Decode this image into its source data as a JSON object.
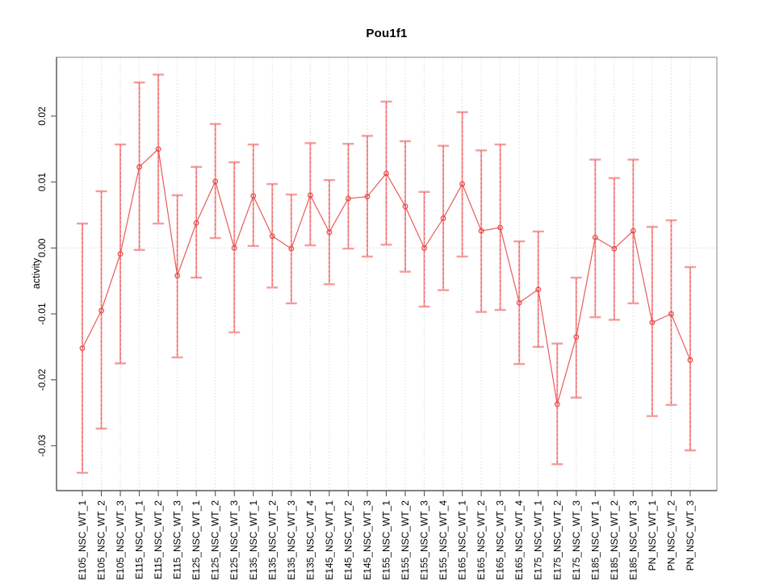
{
  "chart_data": {
    "type": "line",
    "title": "Pou1f1",
    "ylabel": "activity",
    "xlabel": "",
    "legend": "none",
    "grid": "vertical dotted gridline per category plus dotted horizontal zero line",
    "categories": [
      "E105_NSC_WT_1",
      "E105_NSC_WT_2",
      "E105_NSC_WT_3",
      "E115_NSC_WT_1",
      "E115_NSC_WT_2",
      "E115_NSC_WT_3",
      "E125_NSC_WT_1",
      "E125_NSC_WT_2",
      "E125_NSC_WT_3",
      "E135_NSC_WT_1",
      "E135_NSC_WT_2",
      "E135_NSC_WT_3",
      "E135_NSC_WT_4",
      "E145_NSC_WT_1",
      "E145_NSC_WT_2",
      "E145_NSC_WT_3",
      "E155_NSC_WT_1",
      "E155_NSC_WT_2",
      "E155_NSC_WT_3",
      "E155_NSC_WT_4",
      "E165_NSC_WT_1",
      "E165_NSC_WT_2",
      "E165_NSC_WT_3",
      "E165_NSC_WT_4",
      "E175_NSC_WT_1",
      "E175_NSC_WT_2",
      "E175_NSC_WT_3",
      "E185_NSC_WT_1",
      "E185_NSC_WT_2",
      "E185_NSC_WT_3",
      "PN_NSC_WT_1",
      "PN_NSC_WT_2",
      "PN_NSC_WT_3"
    ],
    "values": [
      -0.0152,
      -0.0095,
      -0.0009,
      0.0123,
      0.015,
      -0.0042,
      0.0038,
      0.0101,
      0.0,
      0.0079,
      0.0018,
      -0.0001,
      0.008,
      0.0024,
      0.0075,
      0.0078,
      0.0113,
      0.0063,
      0.0,
      0.0045,
      0.0097,
      0.0026,
      0.0031,
      -0.0083,
      -0.0063,
      -0.0237,
      -0.0135,
      0.0016,
      -0.0001,
      0.0026,
      -0.0113,
      -0.01,
      -0.017
    ],
    "error_upper": [
      0.0037,
      0.0086,
      0.0157,
      0.0251,
      0.0263,
      0.008,
      0.0123,
      0.0188,
      0.013,
      0.0157,
      0.0097,
      0.0081,
      0.0159,
      0.0103,
      0.0158,
      0.017,
      0.0222,
      0.0162,
      0.0085,
      0.0155,
      0.0206,
      0.0148,
      0.0157,
      0.001,
      0.0025,
      -0.0145,
      -0.0045,
      0.0134,
      0.0106,
      0.0134,
      0.0032,
      0.0042,
      -0.0029
    ],
    "error_lower": [
      -0.0341,
      -0.0274,
      -0.0175,
      -0.0003,
      0.0037,
      -0.0166,
      -0.0045,
      0.0015,
      -0.0128,
      0.0003,
      -0.006,
      -0.0084,
      0.0004,
      -0.0055,
      -0.0001,
      -0.0013,
      0.0005,
      -0.0036,
      -0.0089,
      -0.0064,
      -0.0013,
      -0.0097,
      -0.0094,
      -0.0176,
      -0.015,
      -0.0328,
      -0.0227,
      -0.0105,
      -0.0109,
      -0.0084,
      -0.0255,
      -0.0238,
      -0.0307
    ],
    "ytick_labels": [
      "0.02",
      "0.01",
      "0.00",
      "-0.01",
      "-0.02",
      "-0.03"
    ],
    "yticks": [
      0.02,
      0.01,
      0,
      -0.01,
      -0.02,
      -0.03
    ],
    "ylim": [
      -0.0368,
      0.0289
    ],
    "colors": {
      "point": "#e64747",
      "line": "#ea5a5a",
      "error_bar": "#f59c9c",
      "error_dash": "#ea5a5a",
      "grid": "#dcdcdc",
      "zero_line": "#d8d8d8",
      "box": "#999999",
      "axis": "#444444",
      "tick": "#555555",
      "text": "#000000",
      "background": "#ffffff"
    }
  }
}
